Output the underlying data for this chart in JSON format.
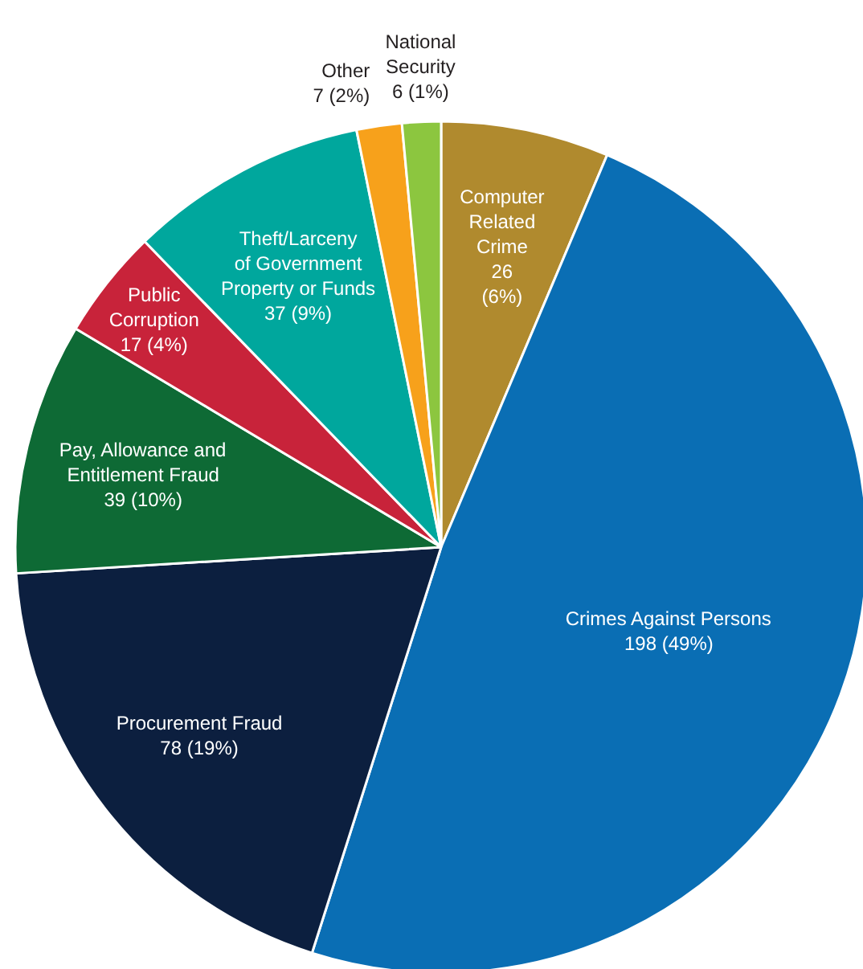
{
  "chart_data": {
    "type": "pie",
    "categories": [
      "Computer\nRelated\nCrime",
      "Crimes Against Persons",
      "Procurement Fraud",
      "Pay, Allowance and\nEntitlement Fraud",
      "Public\nCorruption",
      "Theft/Larceny\nof Government\nProperty or Funds",
      "Other",
      "National\nSecurity"
    ],
    "values": [
      26,
      198,
      78,
      39,
      17,
      37,
      7,
      6
    ],
    "colors": [
      "#b08a2e",
      "#0a6eb4",
      "#0c1f3f",
      "#0e6a35",
      "#c8233a",
      "#00a79d",
      "#f7a11b",
      "#8cc63f"
    ],
    "value_labels": [
      "26\n(6%)",
      "198 (49%)",
      "78 (19%)",
      "39 (10%)",
      "17 (4%)",
      "37 (9%)",
      "7 (2%)",
      "6 (1%)"
    ]
  }
}
